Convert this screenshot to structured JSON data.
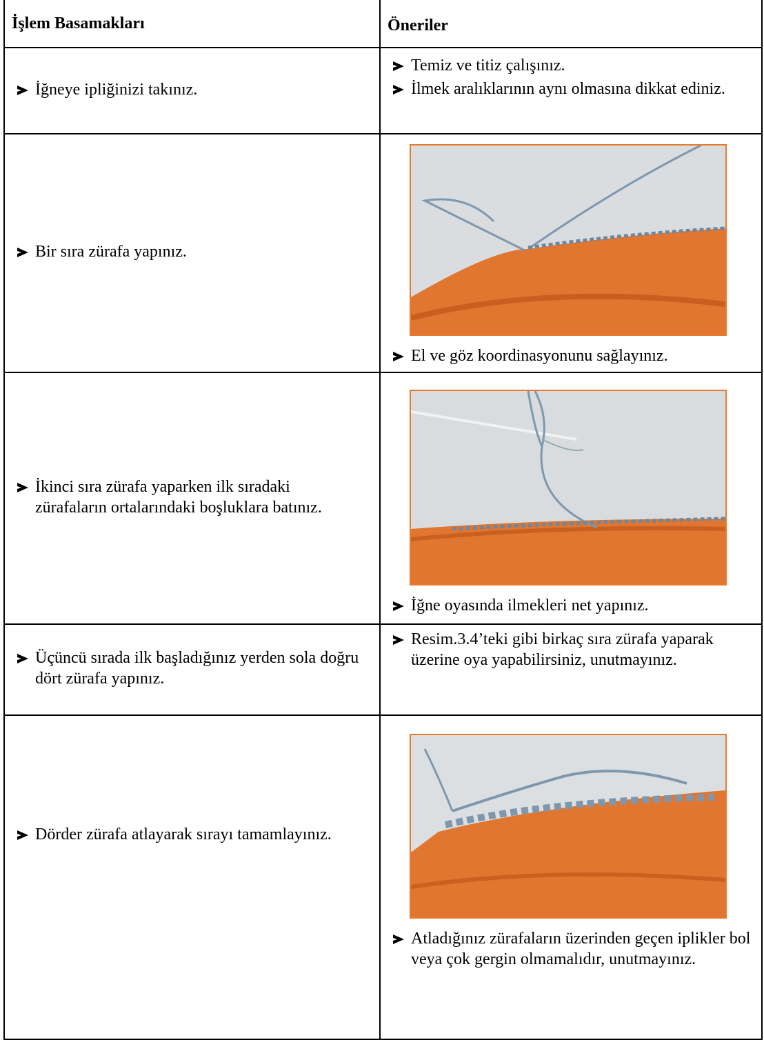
{
  "table": {
    "headers": [
      "İşlem Basamakları",
      "Öneriler"
    ],
    "rows": [
      {
        "step": "İğneye ipliğinizi takınız.",
        "tips": [
          "Temiz ve titiz çalışınız.",
          "İlmek aralıklarının aynı olmasına dikkat ediniz."
        ]
      },
      {
        "step": "Bir sıra zürafa yapınız.",
        "tips": [
          "El ve göz koordinasyonunu sağlayınız."
        ]
      },
      {
        "step": "İkinci sıra zürafa yaparken ilk sıradaki zürafaların ortalarındaki boşluklara batınız.",
        "tips": [
          "İğne oyasında ilmekleri net yapınız."
        ]
      },
      {
        "step": "Üçüncü sırada ilk başladığınız yerden sola doğru dört zürafa yapınız.",
        "tips": [
          "Resim.3.4’teki gibi birkaç sıra zürafa yaparak üzerine oya yapabilirsiniz, unutmayınız."
        ]
      },
      {
        "step": "Dörder zürafa atlayarak sırayı tamamlayınız.",
        "tips": [
          "Atladığınız zürafaların üzerinden geçen iplikler bol veya çok gergin olmamalıdır, unutmayınız."
        ]
      }
    ]
  }
}
